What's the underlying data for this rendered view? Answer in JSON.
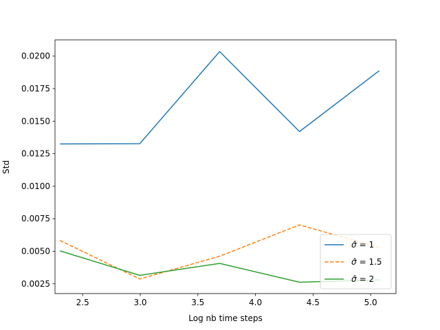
{
  "chart_data": {
    "type": "line",
    "title": "",
    "xlabel": "Log nb time  steps",
    "ylabel": "Std",
    "xlim": [
      2.26,
      5.22
    ],
    "ylim": [
      0.00175,
      0.02125
    ],
    "x_ticks": [
      2.5,
      3.0,
      3.5,
      4.0,
      4.5,
      5.0
    ],
    "x_tick_labels": [
      "2.5",
      "3.0",
      "3.5",
      "4.0",
      "4.5",
      "5.0"
    ],
    "y_ticks": [
      0.0025,
      0.005,
      0.0075,
      0.01,
      0.0125,
      0.015,
      0.0175,
      0.02
    ],
    "y_tick_labels": [
      "0.0025",
      "0.0050",
      "0.0075",
      "0.0100",
      "0.0125",
      "0.0150",
      "0.0175",
      "0.0200"
    ],
    "grid": false,
    "legend_position": "bottom-right",
    "x": [
      2.303,
      2.996,
      3.689,
      4.382,
      5.075
    ],
    "series": [
      {
        "name": "σ̂ =  1",
        "legend_sym": "σ̂",
        "legend_val": "=  1",
        "color": "#1f77b4",
        "dash": "solid",
        "values": [
          0.01325,
          0.01327,
          0.02035,
          0.0142,
          0.01888
        ]
      },
      {
        "name": "σ̂ =  1.5",
        "legend_sym": "σ̂",
        "legend_val": "=  1.5",
        "color": "#ff7f0e",
        "dash": "dashed",
        "values": [
          0.00583,
          0.00287,
          0.00462,
          0.00703,
          0.0053
        ]
      },
      {
        "name": "σ̂ =  2",
        "legend_sym": "σ̂",
        "legend_val": "=  2",
        "color": "#2ca02c",
        "dash": "solid",
        "values": [
          0.00503,
          0.00315,
          0.00407,
          0.00262,
          0.0028
        ]
      }
    ]
  }
}
